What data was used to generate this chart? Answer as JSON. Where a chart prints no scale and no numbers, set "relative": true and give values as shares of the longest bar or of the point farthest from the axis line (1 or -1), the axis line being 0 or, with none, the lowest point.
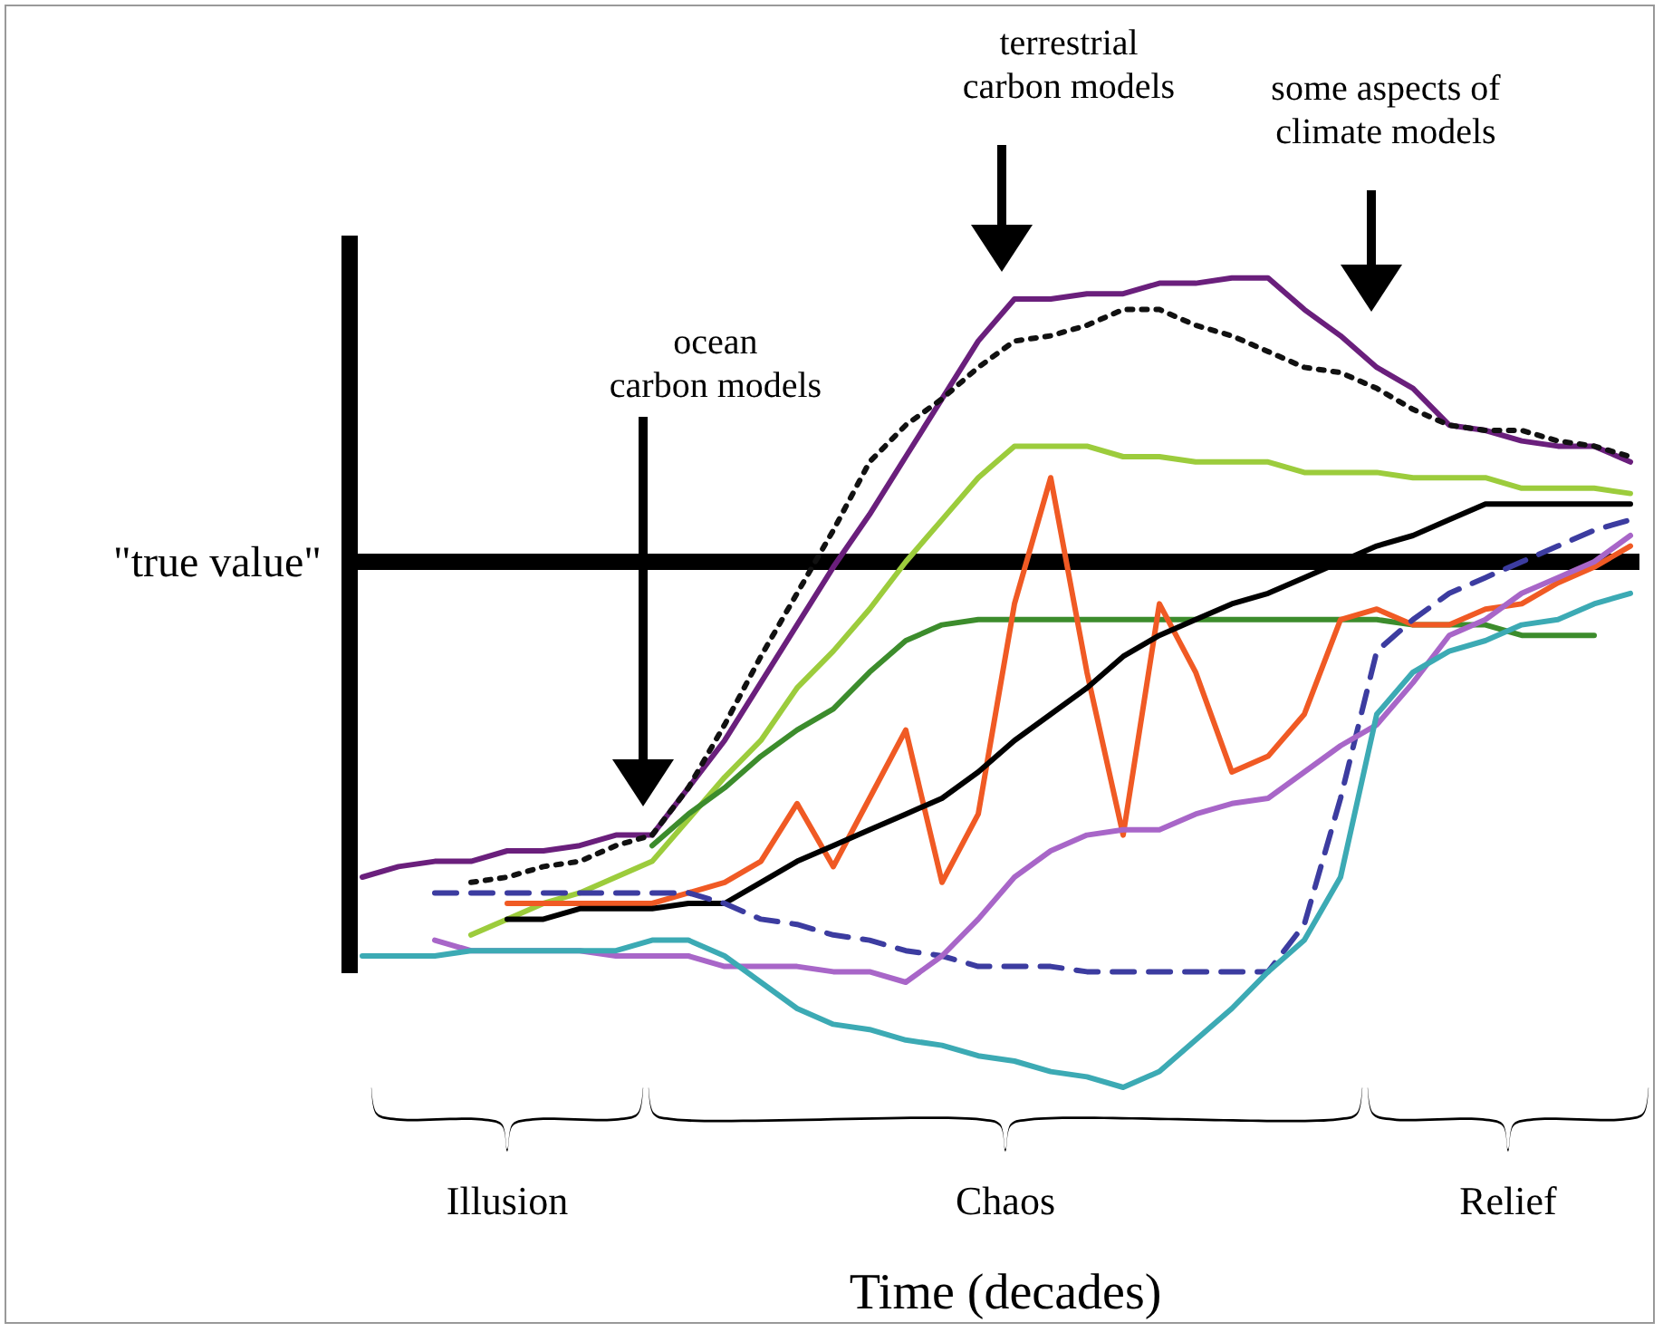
{
  "chart_data": {
    "type": "line",
    "relative": true,
    "xlabel": "Time (decades)",
    "grid": false,
    "legend": false,
    "marker": "none",
    "categories": [
      null,
      null,
      null,
      null,
      null,
      null,
      null,
      null,
      null,
      null,
      null,
      null,
      null,
      null,
      null,
      null,
      null,
      null,
      null,
      null,
      null,
      null,
      null,
      null,
      null,
      null,
      null,
      null,
      null,
      null,
      null,
      null,
      null,
      null,
      null,
      null
    ],
    "series": [
      {
        "color": "#6a1f7c",
        "line_style": "solid",
        "values": [
          -0.6,
          -0.58,
          -0.57,
          -0.57,
          -0.55,
          -0.55,
          -0.54,
          -0.52,
          -0.52,
          -0.43,
          -0.34,
          -0.23,
          -0.12,
          -0.01,
          0.09,
          0.2,
          0.31,
          0.42,
          0.5,
          0.5,
          0.51,
          0.51,
          0.53,
          0.53,
          0.54,
          0.54,
          0.48,
          0.43,
          0.37,
          0.33,
          0.26,
          0.25,
          0.23,
          0.22,
          0.22,
          0.19
        ]
      },
      {
        "color": "#111111",
        "line_style": "dotted",
        "values": [
          null,
          null,
          null,
          -0.61,
          -0.6,
          -0.58,
          -0.57,
          -0.54,
          -0.52,
          -0.43,
          -0.31,
          -0.18,
          -0.06,
          0.06,
          0.19,
          0.26,
          0.31,
          0.37,
          0.42,
          0.43,
          0.45,
          0.48,
          0.48,
          0.45,
          0.43,
          0.4,
          0.37,
          0.36,
          0.33,
          0.29,
          0.26,
          0.25,
          0.25,
          0.23,
          0.22,
          0.2
        ]
      },
      {
        "color": "#9ccc3c",
        "line_style": "solid",
        "values": [
          null,
          null,
          null,
          -0.71,
          -0.68,
          -0.65,
          -0.63,
          -0.6,
          -0.57,
          -0.49,
          -0.41,
          -0.34,
          -0.24,
          -0.17,
          -0.09,
          0.0,
          0.08,
          0.16,
          0.22,
          0.22,
          0.22,
          0.2,
          0.2,
          0.19,
          0.19,
          0.19,
          0.17,
          0.17,
          0.17,
          0.16,
          0.16,
          0.16,
          0.14,
          0.14,
          0.14,
          0.13
        ]
      },
      {
        "color": "#3c8c2c",
        "line_style": "solid",
        "values": [
          null,
          null,
          null,
          null,
          null,
          null,
          null,
          null,
          -0.54,
          -0.48,
          -0.43,
          -0.37,
          -0.32,
          -0.28,
          -0.21,
          -0.15,
          -0.12,
          -0.11,
          -0.11,
          -0.11,
          -0.11,
          -0.11,
          -0.11,
          -0.11,
          -0.11,
          -0.11,
          -0.11,
          -0.11,
          -0.11,
          -0.12,
          -0.12,
          -0.12,
          -0.14,
          -0.14,
          -0.14,
          null
        ]
      },
      {
        "color": "#f05a24",
        "line_style": "solid",
        "values": [
          null,
          null,
          null,
          null,
          -0.65,
          -0.65,
          -0.65,
          -0.65,
          -0.65,
          -0.63,
          -0.61,
          -0.57,
          -0.46,
          -0.58,
          -0.45,
          -0.32,
          -0.61,
          -0.48,
          -0.08,
          0.16,
          -0.21,
          -0.52,
          -0.08,
          -0.21,
          -0.4,
          -0.37,
          -0.29,
          -0.11,
          -0.09,
          -0.12,
          -0.12,
          -0.09,
          -0.08,
          -0.04,
          -0.01,
          0.03
        ]
      },
      {
        "color": "#000000",
        "line_style": "solid",
        "values": [
          null,
          null,
          null,
          null,
          -0.68,
          -0.68,
          -0.66,
          -0.66,
          -0.66,
          -0.65,
          -0.65,
          -0.61,
          -0.57,
          -0.54,
          -0.51,
          -0.48,
          -0.45,
          -0.4,
          -0.34,
          -0.29,
          -0.24,
          -0.18,
          -0.14,
          -0.11,
          -0.08,
          -0.06,
          -0.03,
          0.0,
          0.03,
          0.05,
          0.08,
          0.11,
          0.11,
          0.11,
          0.11,
          0.11
        ]
      },
      {
        "color": "#3c3ca0",
        "line_style": "dashed",
        "values": [
          null,
          null,
          -0.63,
          -0.63,
          -0.63,
          -0.63,
          -0.63,
          -0.63,
          -0.63,
          -0.63,
          -0.65,
          -0.68,
          -0.69,
          -0.71,
          -0.72,
          -0.74,
          -0.75,
          -0.77,
          -0.77,
          -0.77,
          -0.78,
          -0.78,
          -0.78,
          -0.78,
          -0.78,
          -0.78,
          -0.69,
          -0.45,
          -0.17,
          -0.11,
          -0.06,
          -0.03,
          0.0,
          0.03,
          0.06,
          0.08
        ]
      },
      {
        "color": "#a866c8",
        "line_style": "solid",
        "values": [
          null,
          null,
          -0.72,
          -0.74,
          -0.74,
          -0.74,
          -0.74,
          -0.75,
          -0.75,
          -0.75,
          -0.77,
          -0.77,
          -0.77,
          -0.78,
          -0.78,
          -0.8,
          -0.75,
          -0.68,
          -0.6,
          -0.55,
          -0.52,
          -0.51,
          -0.51,
          -0.48,
          -0.46,
          -0.45,
          -0.4,
          -0.35,
          -0.31,
          -0.23,
          -0.14,
          -0.11,
          -0.06,
          -0.03,
          0.0,
          0.05
        ]
      },
      {
        "color": "#3caab4",
        "line_style": "solid",
        "values": [
          -0.75,
          -0.75,
          -0.75,
          -0.74,
          -0.74,
          -0.74,
          -0.74,
          -0.74,
          -0.72,
          -0.72,
          -0.75,
          -0.8,
          -0.85,
          -0.88,
          -0.89,
          -0.91,
          -0.92,
          -0.94,
          -0.95,
          -0.97,
          -0.98,
          -1.0,
          -0.97,
          -0.91,
          -0.85,
          -0.78,
          -0.72,
          -0.6,
          -0.29,
          -0.21,
          -0.17,
          -0.15,
          -0.12,
          -0.11,
          -0.08,
          -0.06
        ]
      }
    ],
    "ref_lines": [
      {
        "axis": "y",
        "value": 0,
        "label": "\"true value\"",
        "color": "#000000",
        "line_style": "solid"
      }
    ],
    "annotations": [
      "ocean\ncarbon models",
      "terrestrial\ncarbon models",
      "some aspects of\nclimate models",
      "Illusion",
      "Chaos",
      "Relief"
    ]
  }
}
